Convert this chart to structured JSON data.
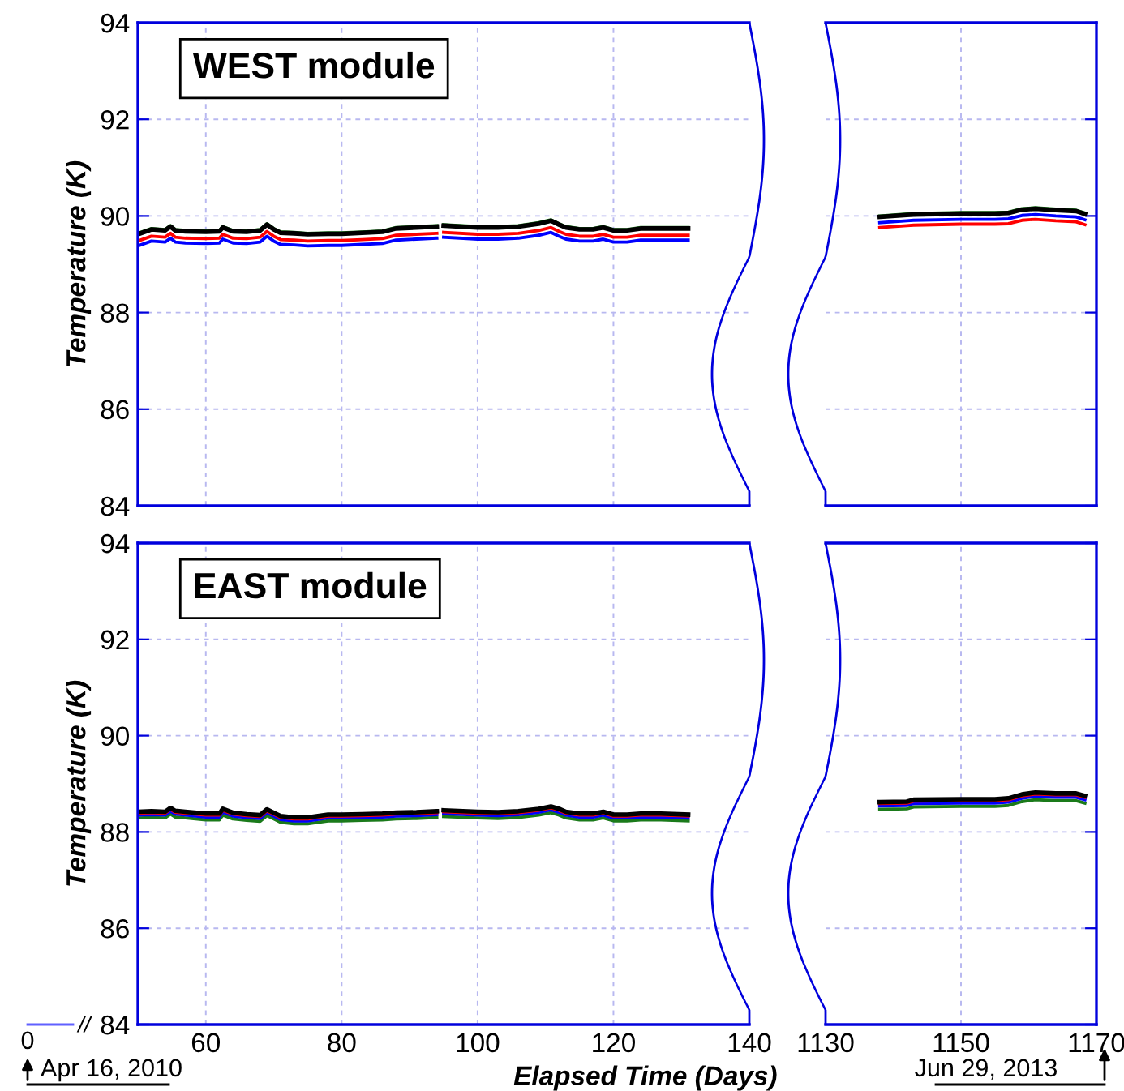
{
  "chart_data": [
    {
      "type": "line",
      "ylabel": "Temperature (K)",
      "annotations": [
        "WEST module"
      ],
      "grid": true,
      "tick_labels": "y",
      "line_style": "solid",
      "xlim": [
        50,
        140
      ],
      "xticks": [
        60,
        80,
        100,
        120,
        140
      ],
      "ylim": [
        84,
        94
      ],
      "yticks": [
        84,
        86,
        88,
        90,
        92,
        94
      ],
      "x": [
        50,
        52,
        54,
        54.8,
        55.5,
        57,
        60,
        62,
        62.5,
        64,
        66,
        68,
        69,
        70,
        71,
        73,
        75,
        78,
        80,
        83,
        86,
        88,
        91,
        94,
        94.5,
        95,
        100,
        103,
        106,
        109,
        110.8,
        112,
        113,
        115,
        117,
        118.5,
        120,
        122,
        124,
        127,
        131
      ],
      "series": [
        {
          "color": "#1a7a1a",
          "values": [
            89.64,
            89.74,
            89.72,
            89.8,
            89.72,
            89.7,
            89.69,
            89.7,
            89.78,
            89.7,
            89.69,
            89.72,
            89.84,
            89.74,
            89.67,
            89.66,
            89.64,
            89.65,
            89.65,
            89.67,
            89.69,
            89.76,
            89.78,
            89.8,
            null,
            89.82,
            89.78,
            89.78,
            89.8,
            89.86,
            89.92,
            89.84,
            89.78,
            89.74,
            89.74,
            89.78,
            89.72,
            89.72,
            89.76,
            89.76,
            89.76
          ]
        },
        {
          "color": "#000000",
          "values": [
            89.62,
            89.72,
            89.7,
            89.78,
            89.7,
            89.68,
            89.67,
            89.68,
            89.76,
            89.68,
            89.67,
            89.7,
            89.82,
            89.72,
            89.65,
            89.64,
            89.62,
            89.63,
            89.63,
            89.65,
            89.67,
            89.74,
            89.76,
            89.78,
            null,
            89.8,
            89.76,
            89.76,
            89.78,
            89.84,
            89.9,
            89.82,
            89.76,
            89.72,
            89.72,
            89.76,
            89.7,
            89.7,
            89.74,
            89.74,
            89.74
          ]
        },
        {
          "color": "#ff0000",
          "values": [
            89.48,
            89.58,
            89.56,
            89.64,
            89.56,
            89.54,
            89.53,
            89.54,
            89.62,
            89.54,
            89.53,
            89.56,
            89.68,
            89.58,
            89.51,
            89.5,
            89.48,
            89.49,
            89.49,
            89.51,
            89.53,
            89.6,
            89.62,
            89.64,
            null,
            89.66,
            89.62,
            89.62,
            89.64,
            89.7,
            89.76,
            89.68,
            89.62,
            89.58,
            89.58,
            89.62,
            89.56,
            89.56,
            89.6,
            89.6,
            89.6
          ]
        },
        {
          "color": "#0000ff",
          "values": [
            89.38,
            89.48,
            89.46,
            89.54,
            89.46,
            89.44,
            89.43,
            89.44,
            89.52,
            89.44,
            89.43,
            89.46,
            89.58,
            89.48,
            89.41,
            89.4,
            89.38,
            89.39,
            89.39,
            89.41,
            89.43,
            89.5,
            89.52,
            89.54,
            null,
            89.56,
            89.52,
            89.52,
            89.54,
            89.6,
            89.66,
            89.58,
            89.52,
            89.48,
            89.48,
            89.52,
            89.46,
            89.46,
            89.5,
            89.5,
            89.5
          ]
        }
      ]
    },
    {
      "type": "line",
      "grid": true,
      "tick_labels": false,
      "line_style": "solid",
      "xlim": [
        1130,
        1170
      ],
      "xticks": [
        1130,
        1150,
        1170
      ],
      "ylim": [
        84,
        94
      ],
      "yticks": [
        84,
        86,
        88,
        90,
        92,
        94
      ],
      "x": [
        1138,
        1142,
        1143,
        1150,
        1155,
        1157,
        1159,
        1161,
        1164,
        1167,
        1168.3
      ],
      "series": [
        {
          "color": "#1a7a1a",
          "values": [
            90.0,
            90.04,
            90.05,
            90.07,
            90.07,
            90.08,
            90.15,
            90.17,
            90.14,
            90.12,
            90.06
          ]
        },
        {
          "color": "#000000",
          "values": [
            89.98,
            90.02,
            90.03,
            90.05,
            90.05,
            90.06,
            90.13,
            90.15,
            90.12,
            90.1,
            90.04
          ]
        },
        {
          "color": "#0000ff",
          "values": [
            89.86,
            89.9,
            89.91,
            89.93,
            89.93,
            89.94,
            90.01,
            90.03,
            90.0,
            89.98,
            89.92
          ]
        },
        {
          "color": "#ff0000",
          "values": [
            89.76,
            89.8,
            89.81,
            89.83,
            89.83,
            89.84,
            89.91,
            89.93,
            89.9,
            89.88,
            89.82
          ]
        }
      ]
    },
    {
      "type": "line",
      "ylabel": "Temperature (K)",
      "xlabel": "Elapsed Time (Days)",
      "annotations": [
        "EAST module",
        "0",
        "//",
        "Apr 16, 2010"
      ],
      "grid": true,
      "line_style": "solid",
      "xlim": [
        50,
        140
      ],
      "xticks": [
        60,
        80,
        100,
        120,
        140
      ],
      "ylim": [
        84,
        94
      ],
      "yticks": [
        84,
        86,
        88,
        90,
        92,
        94
      ],
      "x": [
        50,
        52,
        54,
        54.8,
        55.5,
        57,
        60,
        62,
        62.5,
        64,
        66,
        68,
        69,
        70,
        71,
        73,
        75,
        78,
        80,
        83,
        86,
        88,
        91,
        94,
        94.5,
        95,
        100,
        103,
        106,
        109,
        110.8,
        112,
        113,
        115,
        117,
        118.5,
        120,
        122,
        124,
        127,
        131
      ],
      "series": [
        {
          "color": "#1a7a1a",
          "values": [
            88.29,
            88.3,
            88.29,
            88.37,
            88.31,
            88.29,
            88.25,
            88.25,
            88.35,
            88.27,
            88.24,
            88.22,
            88.34,
            88.27,
            88.2,
            88.17,
            88.17,
            88.23,
            88.23,
            88.24,
            88.25,
            88.27,
            88.28,
            88.3,
            null,
            88.32,
            88.29,
            88.28,
            88.3,
            88.35,
            88.4,
            88.35,
            88.29,
            88.25,
            88.25,
            88.29,
            88.23,
            88.23,
            88.25,
            88.25,
            88.23
          ]
        },
        {
          "color": "#0000ff",
          "values": [
            88.35,
            88.36,
            88.35,
            88.43,
            88.37,
            88.35,
            88.31,
            88.31,
            88.41,
            88.33,
            88.3,
            88.28,
            88.4,
            88.33,
            88.26,
            88.23,
            88.23,
            88.29,
            88.29,
            88.3,
            88.31,
            88.33,
            88.34,
            88.36,
            null,
            88.38,
            88.35,
            88.34,
            88.36,
            88.41,
            88.46,
            88.41,
            88.35,
            88.31,
            88.31,
            88.35,
            88.29,
            88.29,
            88.31,
            88.31,
            88.29
          ]
        },
        {
          "color": "#ff0000",
          "values": [
            88.39,
            88.4,
            88.39,
            88.47,
            88.41,
            88.39,
            88.35,
            88.35,
            88.45,
            88.37,
            88.34,
            88.32,
            88.44,
            88.37,
            88.3,
            88.27,
            88.27,
            88.33,
            88.33,
            88.34,
            88.35,
            88.37,
            88.38,
            88.4,
            null,
            88.42,
            88.39,
            88.38,
            88.4,
            88.45,
            88.5,
            88.45,
            88.39,
            88.35,
            88.35,
            88.39,
            88.33,
            88.33,
            88.35,
            88.35,
            88.33
          ]
        },
        {
          "color": "#000000",
          "values": [
            88.42,
            88.43,
            88.42,
            88.5,
            88.44,
            88.42,
            88.38,
            88.38,
            88.48,
            88.4,
            88.37,
            88.35,
            88.47,
            88.4,
            88.33,
            88.3,
            88.3,
            88.36,
            88.36,
            88.37,
            88.38,
            88.4,
            88.41,
            88.43,
            null,
            88.45,
            88.42,
            88.41,
            88.43,
            88.48,
            88.53,
            88.48,
            88.42,
            88.38,
            88.38,
            88.42,
            88.36,
            88.36,
            88.38,
            88.38,
            88.36
          ]
        }
      ]
    },
    {
      "type": "line",
      "annotations": [
        "Jun 29, 2013"
      ],
      "grid": true,
      "tick_labels": "x",
      "line_style": "solid",
      "xlim": [
        1130,
        1170
      ],
      "xticks": [
        1130,
        1150,
        1170
      ],
      "ylim": [
        84,
        94
      ],
      "yticks": [
        84,
        86,
        88,
        90,
        92,
        94
      ],
      "x": [
        1138,
        1142,
        1143,
        1150,
        1155,
        1157,
        1159,
        1161,
        1164,
        1167,
        1168.3
      ],
      "series": [
        {
          "color": "#1a7a1a",
          "values": [
            88.47,
            88.48,
            88.52,
            88.53,
            88.53,
            88.55,
            88.63,
            88.67,
            88.65,
            88.65,
            88.6
          ]
        },
        {
          "color": "#0000ff",
          "values": [
            88.54,
            88.55,
            88.59,
            88.6,
            88.6,
            88.62,
            88.7,
            88.74,
            88.72,
            88.72,
            88.67
          ]
        },
        {
          "color": "#ff0000",
          "values": [
            88.59,
            88.6,
            88.64,
            88.65,
            88.65,
            88.67,
            88.75,
            88.79,
            88.77,
            88.77,
            88.72
          ]
        },
        {
          "color": "#000000",
          "values": [
            88.62,
            88.63,
            88.67,
            88.68,
            88.68,
            88.7,
            88.78,
            88.82,
            88.8,
            88.8,
            88.75
          ]
        }
      ]
    }
  ]
}
